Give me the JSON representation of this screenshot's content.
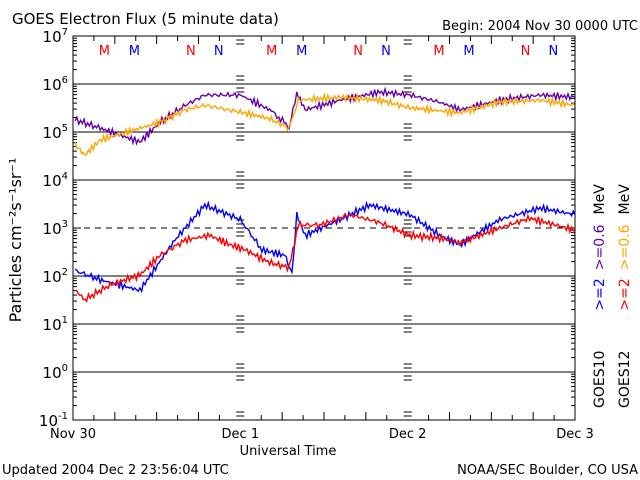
{
  "chart_data": {
    "type": "line",
    "title": "GOES Electron Flux (5 minute data)",
    "subtitle": "Begin: 2004 Nov 30 0000 UTC",
    "xlabel": "Universal Time",
    "ylabel": "Particles cm⁻²s⁻¹sr⁻¹",
    "yscale": "log",
    "ylim": [
      0.1,
      10000000
    ],
    "xlim_hours": [
      0,
      72
    ],
    "y_ticks": [
      {
        "exp": "7",
        "value": 10000000
      },
      {
        "exp": "6",
        "value": 1000000
      },
      {
        "exp": "5",
        "value": 100000
      },
      {
        "exp": "4",
        "value": 10000
      },
      {
        "exp": "3",
        "value": 1000
      },
      {
        "exp": "2",
        "value": 100
      },
      {
        "exp": "1",
        "value": 10
      },
      {
        "exp": "0",
        "value": 1
      },
      {
        "exp": "-1",
        "value": 0.1
      }
    ],
    "x_ticks": [
      {
        "label": "Nov 30",
        "hour": 0
      },
      {
        "label": "Dec 1",
        "hour": 24
      },
      {
        "label": "Dec 2",
        "hour": 48
      },
      {
        "label": "Dec 3",
        "hour": 72
      }
    ],
    "threshold_line": {
      "value": 1000,
      "style": "dashed"
    },
    "markers": [
      {
        "label": "M",
        "hour": 4.5,
        "color": "#ff0000"
      },
      {
        "label": "M",
        "hour": 8.8,
        "color": "#0000ff"
      },
      {
        "label": "N",
        "hour": 16.9,
        "color": "#ff0000"
      },
      {
        "label": "N",
        "hour": 20.9,
        "color": "#0000ff"
      },
      {
        "label": "M",
        "hour": 28.5,
        "color": "#ff0000"
      },
      {
        "label": "M",
        "hour": 32.8,
        "color": "#0000ff"
      },
      {
        "label": "N",
        "hour": 40.9,
        "color": "#ff0000"
      },
      {
        "label": "N",
        "hour": 44.9,
        "color": "#0000ff"
      },
      {
        "label": "M",
        "hour": 52.5,
        "color": "#ff0000"
      },
      {
        "label": "M",
        "hour": 56.8,
        "color": "#0000ff"
      },
      {
        "label": "N",
        "hour": 64.9,
        "color": "#ff0000"
      },
      {
        "label": "N",
        "hour": 68.9,
        "color": "#0000ff"
      }
    ],
    "series": [
      {
        "name": "GOES10 >=0.6 MeV",
        "color": "#6600aa",
        "x": [
          0.3,
          3.9,
          9.6,
          12.5,
          16.1,
          18.9,
          24,
          28.2,
          30.3,
          31,
          32.1,
          33.3,
          38.3,
          44,
          48.3,
          52.6,
          55.5,
          61.2,
          67,
          72
        ],
        "y": [
          180000,
          120000,
          62000,
          160000,
          360000,
          590000,
          590000,
          290000,
          160000,
          120000,
          650000,
          290000,
          460000,
          680000,
          590000,
          420000,
          290000,
          460000,
          590000,
          530000
        ]
      },
      {
        "name": "GOES12 >=0.6 MeV",
        "color": "#ffa500",
        "x": [
          0.3,
          1.7,
          3.9,
          9.6,
          12.5,
          16.1,
          18.9,
          24,
          28.2,
          31,
          32.3,
          38.3,
          44,
          48.3,
          55.5,
          61.2,
          67,
          72
        ],
        "y": [
          54000,
          33000,
          68000,
          120000,
          160000,
          290000,
          360000,
          260000,
          190000,
          120000,
          460000,
          530000,
          460000,
          320000,
          250000,
          420000,
          460000,
          360000
        ]
      },
      {
        "name": "GOES10 >=2 MeV",
        "color": "#0000ff",
        "x": [
          0.3,
          3.9,
          9.6,
          14.6,
          18.9,
          24,
          27.1,
          30.3,
          31.4,
          32.1,
          33.3,
          38.3,
          42.6,
          48.3,
          52.6,
          55.5,
          61.2,
          67,
          72
        ],
        "y": [
          130,
          83,
          50,
          560,
          3000,
          1500,
          350,
          270,
          105,
          1900,
          700,
          1500,
          3000,
          1900,
          700,
          450,
          1500,
          2600,
          1900
        ]
      },
      {
        "name": "GOES12 >=2 MeV",
        "color": "#ff0000",
        "x": [
          0.3,
          1.7,
          5.3,
          9.6,
          12.5,
          16.1,
          19.6,
          22.5,
          24.7,
          28.2,
          31,
          32.3,
          35.4,
          39.7,
          44,
          48.3,
          52.6,
          55.5,
          61.2,
          65.5,
          72
        ],
        "y": [
          51,
          32,
          65,
          105,
          270,
          560,
          700,
          450,
          350,
          190,
          150,
          1150,
          1150,
          1900,
          1300,
          700,
          620,
          490,
          1000,
          1600,
          900
        ]
      }
    ]
  },
  "legend": {
    "col1": {
      "sat": "GOES10",
      "e1": ">=2",
      "e2": ">=0.6",
      "unit": "MeV"
    },
    "col2": {
      "sat": "GOES12",
      "e1": ">=2",
      "e2": ">=0.6",
      "unit": "MeV"
    }
  },
  "footer": {
    "updated": "Updated 2004 Dec  2 23:56:04 UTC",
    "source": "NOAA/SEC Boulder, CO USA"
  }
}
